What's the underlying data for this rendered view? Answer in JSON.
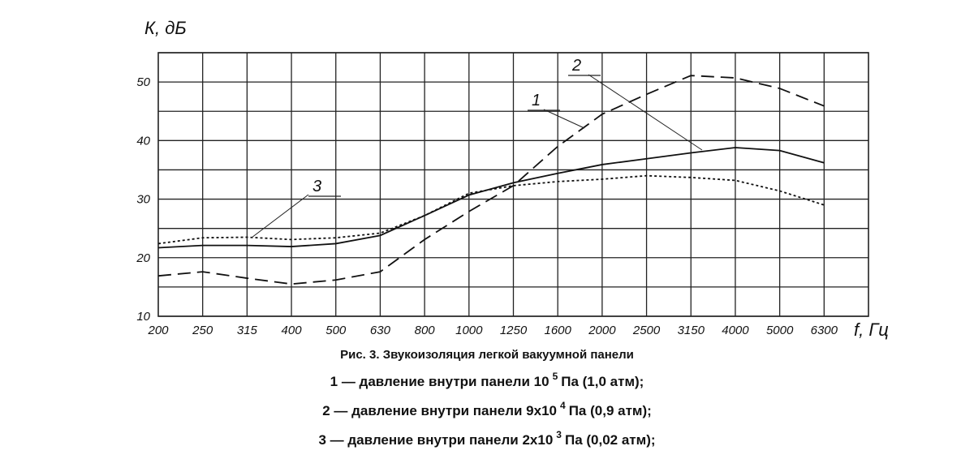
{
  "chart_data": {
    "type": "line",
    "y_label": "К, дБ",
    "x_label": "f, Гц",
    "caption": "Рис. 3. Звукоизоляция легкой вакуумной панели",
    "categories": [
      "200",
      "250",
      "315",
      "400",
      "500",
      "630",
      "800",
      "1000",
      "1250",
      "1600",
      "2000",
      "2500",
      "3150",
      "4000",
      "5000",
      "6300"
    ],
    "ylim": [
      10,
      55
    ],
    "yticks": [
      10,
      20,
      30,
      40,
      50
    ],
    "yminor": [
      15,
      25,
      35,
      45,
      55
    ],
    "grid": true,
    "series": [
      {
        "name": "1",
        "color": "#111111",
        "dash": "none",
        "values": [
          21.7,
          22.1,
          22.1,
          21.9,
          22.4,
          23.8,
          27.2,
          30.7,
          32.8,
          34.4,
          35.9,
          36.9,
          37.9,
          38.8,
          38.3,
          36.2
        ]
      },
      {
        "name": "2",
        "color": "#111111",
        "dash": "16,8",
        "values": [
          16.9,
          17.6,
          16.5,
          15.5,
          16.2,
          17.6,
          23.1,
          27.9,
          32.3,
          39,
          44.5,
          47.9,
          51.1,
          50.7,
          48.9,
          45.9
        ]
      },
      {
        "name": "3",
        "color": "#111111",
        "dash": "3,3",
        "values": [
          22.4,
          23.4,
          23.5,
          23.1,
          23.4,
          24.2,
          27.2,
          31,
          32.3,
          33,
          33.4,
          34,
          33.7,
          33.2,
          31.4,
          29
        ]
      }
    ],
    "legend_lines": [
      {
        "text": "1 — давление внутри панели 10",
        "sup": "5",
        "rest": "Па (1,0 атм);"
      },
      {
        "text": "2 — давление внутри панели 9x10",
        "sup": "4",
        "rest": "Па (0,9 атм);"
      },
      {
        "text": "3 — давление внутри панели 2x10",
        "sup": "3",
        "rest": "Па (0,02 атм);"
      }
    ]
  }
}
